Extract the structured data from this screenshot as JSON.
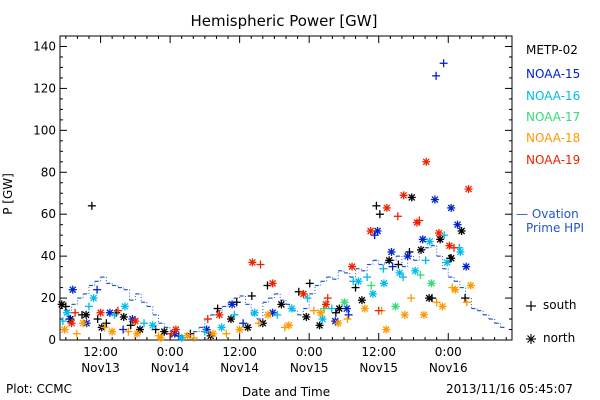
{
  "chart_data": {
    "type": "scatter",
    "title": "Hemispheric Power [GW]",
    "xlabel": "Date and Time",
    "ylabel": "P [GW]",
    "x_range_hours": [
      -19,
      59
    ],
    "ylim": [
      0,
      145
    ],
    "y_ticks": [
      0,
      20,
      40,
      60,
      80,
      100,
      120,
      140
    ],
    "x_ticks": [
      {
        "h": -12,
        "l1": "12:00",
        "l2": "Nov13"
      },
      {
        "h": 0,
        "l1": "0:00",
        "l2": "Nov14"
      },
      {
        "h": 12,
        "l1": "12:00",
        "l2": "Nov14"
      },
      {
        "h": 24,
        "l1": "0:00",
        "l2": "Nov15"
      },
      {
        "h": 36,
        "l1": "12:00",
        "l2": "Nov15"
      },
      {
        "h": 48,
        "l1": "0:00",
        "l2": "Nov16"
      }
    ],
    "x_note": "x values are hours relative to 2013-11-14 00:00",
    "legend": {
      "sat_label_header": "METP-02",
      "sats": [
        {
          "name": "NOAA-15",
          "color": "#0022cc"
        },
        {
          "name": "NOAA-16",
          "color": "#00bbee"
        },
        {
          "name": "NOAA-17",
          "color": "#33dd77"
        },
        {
          "name": "NOAA-18",
          "color": "#ff9900"
        },
        {
          "name": "NOAA-19",
          "color": "#ee2200"
        }
      ],
      "ovation_label_1": "— Ovation",
      "ovation_label_2": "Prime HPI",
      "ovation_color": "#2255cc",
      "south_label": "south",
      "north_label": "north"
    },
    "series": [
      {
        "name": "Ovation Prime HPI",
        "kind": "step",
        "color": "#2255cc",
        "x": [
          -18,
          -17,
          -16,
          -15,
          -14,
          -13,
          -12,
          -11,
          -10,
          -9,
          -8,
          -7,
          -6,
          -5,
          -4,
          -3,
          -2,
          -1,
          0,
          1,
          2,
          3,
          4,
          5,
          6,
          7,
          8,
          9,
          10,
          11,
          12,
          13,
          14,
          15,
          16,
          17,
          18,
          19,
          20,
          21,
          22,
          23,
          24,
          25,
          26,
          27,
          28,
          29,
          30,
          31,
          32,
          33,
          34,
          35,
          36,
          37,
          38,
          39,
          40,
          41,
          42,
          43,
          44,
          45,
          46,
          47,
          48,
          49,
          50,
          51,
          52,
          53,
          54,
          55,
          56,
          57
        ],
        "values": [
          14,
          17,
          20,
          22,
          26,
          28,
          30,
          27,
          26,
          25,
          24,
          19,
          22,
          18,
          16,
          12,
          8,
          6,
          4,
          2,
          1,
          2,
          4,
          6,
          10,
          12,
          14,
          16,
          18,
          20,
          21,
          17,
          12,
          10,
          18,
          20,
          22,
          19,
          17,
          14,
          12,
          15,
          22,
          26,
          28,
          30,
          29,
          33,
          32,
          30,
          34,
          33,
          36,
          38,
          36,
          37,
          38,
          40,
          35,
          40,
          38,
          43,
          44,
          45,
          40,
          34,
          30,
          28,
          25,
          20,
          15,
          14,
          12,
          10,
          8,
          6
        ]
      },
      {
        "name": "METP-02",
        "color": "#000000",
        "south_x": [
          -19.5,
          -18.0,
          -15.2,
          -13.5,
          -12.5,
          -11.0,
          -9.3,
          -6.8,
          -2.5,
          3.5,
          8.2,
          11.5,
          14.1,
          16.8,
          22.2,
          24.1,
          28.6,
          32.0,
          35.6,
          36.2,
          39.4,
          41.3,
          45.2,
          48.3,
          50.9
        ],
        "south_y": [
          5,
          16,
          12,
          64,
          10,
          8,
          13,
          7,
          5,
          3,
          15,
          18,
          21,
          26,
          23,
          27,
          13,
          25,
          64,
          60,
          36,
          42,
          20,
          39,
          20
        ],
        "north_x": [
          -18.7,
          -17.2,
          -14.5,
          -11.8,
          -8.0,
          -5.2,
          -1.0,
          7.0,
          10.5,
          13.4,
          16.0,
          19.2,
          23.5,
          25.8,
          29.2,
          33.1,
          37.8,
          41.7,
          43.3,
          44.7,
          46.6,
          48.5,
          50.3
        ],
        "north_y": [
          17,
          10,
          12,
          6,
          11,
          5,
          4,
          2,
          10,
          6,
          8,
          17,
          11,
          7,
          15,
          19,
          38,
          68,
          43,
          20,
          48,
          39,
          52
        ]
      },
      {
        "name": "NOAA-15",
        "color": "#0022cc",
        "south_x": [
          -17.4,
          -12.6,
          -8.1,
          1.5,
          12.6,
          30.8,
          35.3,
          38.4,
          45.9,
          47.2
        ],
        "south_y": [
          10,
          24,
          5,
          2,
          8,
          12,
          50,
          35,
          126,
          132
        ],
        "north_x": [
          -16.8,
          -14.4,
          -10.4,
          -6.5,
          0.8,
          6.3,
          10.7,
          17.7,
          28.5,
          30.5,
          35.8,
          38.2,
          41.0,
          43.6,
          45.7,
          48.5,
          49.6,
          51.1
        ],
        "north_y": [
          24,
          8,
          13,
          10,
          3,
          5,
          17,
          13,
          9,
          15,
          52,
          42,
          40,
          48,
          67,
          63,
          55,
          35
        ]
      },
      {
        "name": "NOAA-16",
        "color": "#00bbee",
        "south_x": [
          -18.5,
          -14.0,
          -9.6,
          -4.5,
          6.0,
          11.1,
          18.5,
          23.7,
          27.9,
          31.6,
          34.0,
          36.8,
          40.2,
          44.1,
          47.3,
          49.9
        ],
        "south_y": [
          9,
          16,
          12,
          8,
          4,
          12,
          12,
          20,
          15,
          28,
          30,
          34,
          30,
          38,
          50,
          44
        ],
        "north_x": [
          -17.8,
          -13.2,
          -7.8,
          -3.0,
          2.0,
          8.9,
          14.6,
          21.0,
          26.3,
          32.5,
          35.0,
          36.9,
          39.6,
          42.3,
          44.8,
          47.8,
          50.1
        ],
        "north_y": [
          13,
          20,
          16,
          7,
          1,
          6,
          13,
          15,
          10,
          28,
          22,
          27,
          32,
          33,
          47,
          37,
          42
        ]
      },
      {
        "name": "NOAA-17",
        "color": "#33dd77",
        "south_x": [
          26.6,
          34.7,
          43.2
        ],
        "south_y": [
          15,
          26,
          31
        ],
        "north_x": [
          30.1,
          38.9,
          45.1
        ],
        "north_y": [
          18,
          16,
          27
        ]
      },
      {
        "name": "NOAA-18",
        "color": "#ff9900",
        "south_x": [
          -16.1,
          -11.3,
          -7.2,
          -2.0,
          4.1,
          9.7,
          15.3,
          19.8,
          24.8,
          30.6,
          36.5,
          41.6,
          46.0,
          48.7,
          51.2
        ],
        "south_y": [
          3,
          6,
          4,
          2,
          1,
          3,
          8,
          6,
          14,
          10,
          14,
          20,
          18,
          25,
          18
        ],
        "north_x": [
          -18.2,
          -15.0,
          -10.0,
          -5.7,
          -1.6,
          3.0,
          7.4,
          12.0,
          16.9,
          20.5,
          26.0,
          29.0,
          33.6,
          37.3,
          40.5,
          43.8,
          47.0,
          49.2,
          51.9
        ],
        "north_y": [
          5,
          8,
          4,
          3,
          1,
          2,
          3,
          5,
          12,
          7,
          13,
          8,
          15,
          5,
          12,
          12,
          16,
          24,
          26
        ]
      },
      {
        "name": "NOAA-19",
        "color": "#ee2200",
        "south_x": [
          -16.4,
          -9.0,
          0.2,
          6.5,
          15.6,
          27.2,
          36.0,
          39.3,
          43.0,
          49.0
        ],
        "south_y": [
          13,
          14,
          3,
          10,
          36,
          20,
          14,
          59,
          57,
          44
        ],
        "north_x": [
          -17.0,
          -12.0,
          -6.0,
          1.0,
          8.5,
          14.2,
          17.7,
          23.0,
          26.9,
          31.4,
          34.6,
          37.4,
          40.3,
          42.6,
          44.2,
          46.4,
          48.2,
          51.5
        ],
        "north_y": [
          8,
          13,
          9,
          5,
          12,
          37,
          27,
          22,
          17,
          35,
          52,
          63,
          69,
          56,
          85,
          51,
          45,
          72
        ]
      }
    ]
  },
  "footer": {
    "plot_label": "Plot: CCMC",
    "timestamp": "2013/11/16 05:45:07"
  }
}
